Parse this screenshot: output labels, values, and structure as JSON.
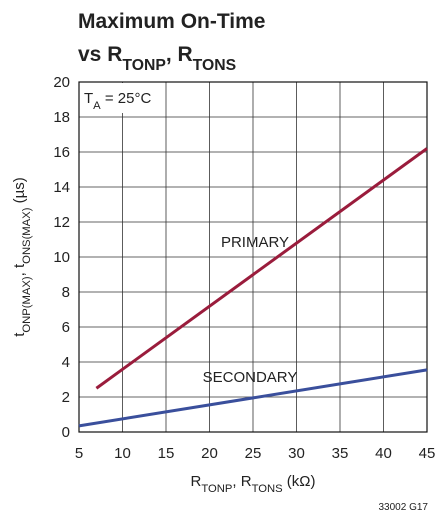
{
  "chart_data": {
    "type": "line",
    "title": [
      [
        {
          "t": "Maximum On-Time"
        }
      ],
      [
        {
          "t": "vs R"
        },
        {
          "t": "TONP",
          "sub": true
        },
        {
          "t": ", R"
        },
        {
          "t": "TONS",
          "sub": true
        }
      ]
    ],
    "xlabel": [
      {
        "t": "R"
      },
      {
        "t": "TONP",
        "sub": true
      },
      {
        "t": ", R"
      },
      {
        "t": "TONS",
        "sub": true
      },
      {
        "t": " (kΩ)"
      }
    ],
    "ylabel": [
      {
        "t": "t"
      },
      {
        "t": "ONP(MAX)",
        "sub": true
      },
      {
        "t": ", t"
      },
      {
        "t": "ONS(MAX)",
        "sub": true
      },
      {
        "t": " (µs)"
      }
    ],
    "annotation": [
      {
        "t": "T"
      },
      {
        "t": "A",
        "sub": true
      },
      {
        "t": " = 25°C"
      }
    ],
    "footnote": "33002 G17",
    "series": [
      {
        "name": "PRIMARY",
        "color": "#9a1c3c",
        "x": [
          7,
          45
        ],
        "values": [
          2.5,
          16.2
        ]
      },
      {
        "name": "SECONDARY",
        "color": "#3a4f9c",
        "x": [
          5,
          45
        ],
        "values": [
          0.35,
          3.55
        ]
      }
    ],
    "xlim": [
      5,
      45
    ],
    "xticks": [
      5,
      10,
      15,
      20,
      25,
      30,
      35,
      40,
      45
    ],
    "ylim": [
      0,
      20
    ],
    "yticks": [
      0,
      2,
      4,
      6,
      8,
      10,
      12,
      14,
      16,
      18,
      20
    ],
    "grid": true
  }
}
